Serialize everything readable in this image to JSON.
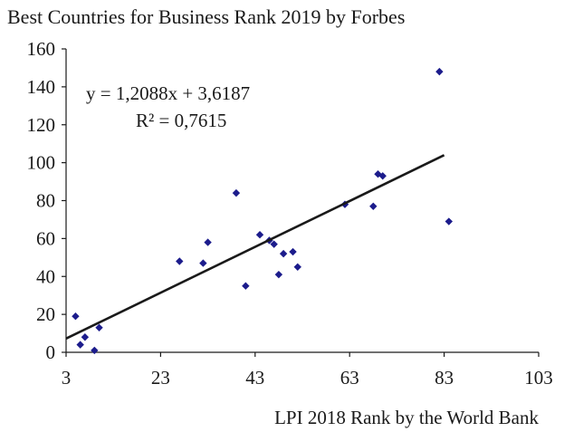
{
  "chart_data": {
    "type": "scatter",
    "title": "Best Countries for Business Rank 2019  by Forbes",
    "xlabel": "LPI 2018 Rank  by the World Bank",
    "ylabel": "",
    "xlim": [
      3,
      103
    ],
    "ylim": [
      0,
      160
    ],
    "x_ticks": [
      3,
      23,
      43,
      63,
      83,
      103
    ],
    "y_ticks": [
      0,
      20,
      40,
      60,
      80,
      100,
      120,
      140,
      160
    ],
    "x_tick_labels": [
      "3",
      "23",
      "43",
      "63",
      "83",
      "103"
    ],
    "y_tick_labels": [
      "0",
      "20",
      "40",
      "60",
      "80",
      "100",
      "120",
      "140",
      "160"
    ],
    "grid": false,
    "marker": "diamond",
    "marker_color": "#1c1c8c",
    "series": [
      {
        "points": [
          [
            5,
            19
          ],
          [
            6,
            4
          ],
          [
            7,
            8
          ],
          [
            9,
            1
          ],
          [
            10,
            13
          ],
          [
            27,
            48
          ],
          [
            32,
            47
          ],
          [
            33,
            58
          ],
          [
            39,
            84
          ],
          [
            41,
            35
          ],
          [
            44,
            62
          ],
          [
            46,
            59
          ],
          [
            47,
            57
          ],
          [
            48,
            41
          ],
          [
            49,
            52
          ],
          [
            51,
            53
          ],
          [
            52,
            45
          ],
          [
            62,
            78
          ],
          [
            68,
            77
          ],
          [
            69,
            94
          ],
          [
            70,
            93
          ],
          [
            82,
            148
          ],
          [
            84,
            69
          ]
        ]
      }
    ],
    "trendline": {
      "slope": 1.2088,
      "intercept": 3.6187,
      "x_range": [
        3,
        83
      ],
      "color": "#1a1a1a"
    },
    "annotations": {
      "equation": "y = 1,2088x  + 3,6187",
      "r_squared": "R² = 0,7615"
    }
  }
}
